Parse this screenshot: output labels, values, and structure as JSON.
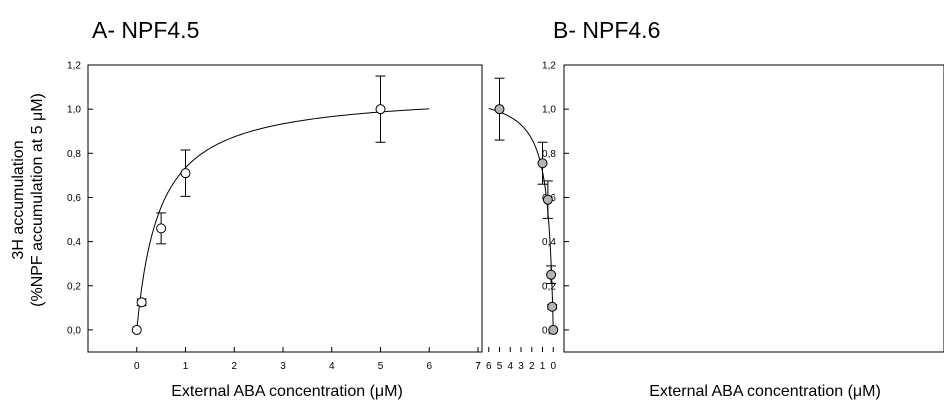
{
  "chart_data": [
    {
      "type": "scatter",
      "title": "A- NPF4.5",
      "xlabel": "External ABA concentration (μM)",
      "ylabel_line1": "3H accumulation",
      "ylabel_line2": "(%NPF accumulation at 5 μM)",
      "xlim": [
        -1,
        7
      ],
      "ylim": [
        -0.1,
        1.2
      ],
      "x_ticks": [
        0,
        1,
        2,
        3,
        4,
        5,
        6,
        7
      ],
      "y_ticks": [
        "0,0",
        "0,2",
        "0,4",
        "0,6",
        "0,8",
        "1,0",
        "1,2"
      ],
      "y_tick_values": [
        0,
        0.2,
        0.4,
        0.6,
        0.8,
        1.0,
        1.2
      ],
      "marker_color": "#ffffff",
      "points": [
        {
          "x": 0,
          "y": 0.0,
          "err": 0.0
        },
        {
          "x": 0.1,
          "y": 0.125,
          "err": 0.015
        },
        {
          "x": 0.5,
          "y": 0.46,
          "err": 0.07
        },
        {
          "x": 1,
          "y": 0.71,
          "err": 0.105
        },
        {
          "x": 5,
          "y": 1.0,
          "err": 0.15
        }
      ],
      "fit": {
        "vmax": 1.08,
        "km": 0.47,
        "x_range": [
          0,
          6
        ]
      },
      "grid": false
    },
    {
      "type": "scatter",
      "title": "B- NPF4.6",
      "xlabel": "External ABA concentration (μM)",
      "xlim": [
        -1,
        7
      ],
      "ylim": [
        -0.1,
        1.2
      ],
      "x_ticks": [
        0,
        1,
        2,
        3,
        4,
        5,
        6,
        7
      ],
      "y_ticks": [
        "0,0",
        "0,2",
        "0,4",
        "0,6",
        "0,8",
        "1,0",
        "1,2"
      ],
      "y_tick_values": [
        0,
        0.2,
        0.4,
        0.6,
        0.8,
        1.0,
        1.2
      ],
      "marker_color": "#b4b4b4",
      "points": [
        {
          "x": 0,
          "y": 0.0,
          "err": 0.0
        },
        {
          "x": 0.1,
          "y": 0.105,
          "err": 0.01
        },
        {
          "x": 0.2,
          "y": 0.25,
          "err": 0.04
        },
        {
          "x": 0.5,
          "y": 0.59,
          "err": 0.085
        },
        {
          "x": 1,
          "y": 0.755,
          "err": 0.095
        },
        {
          "x": 5,
          "y": 1.0,
          "err": 0.14
        }
      ],
      "fit": {
        "vmax": 1.09,
        "km": 0.52,
        "x_range": [
          0,
          6
        ]
      },
      "grid": false
    }
  ]
}
